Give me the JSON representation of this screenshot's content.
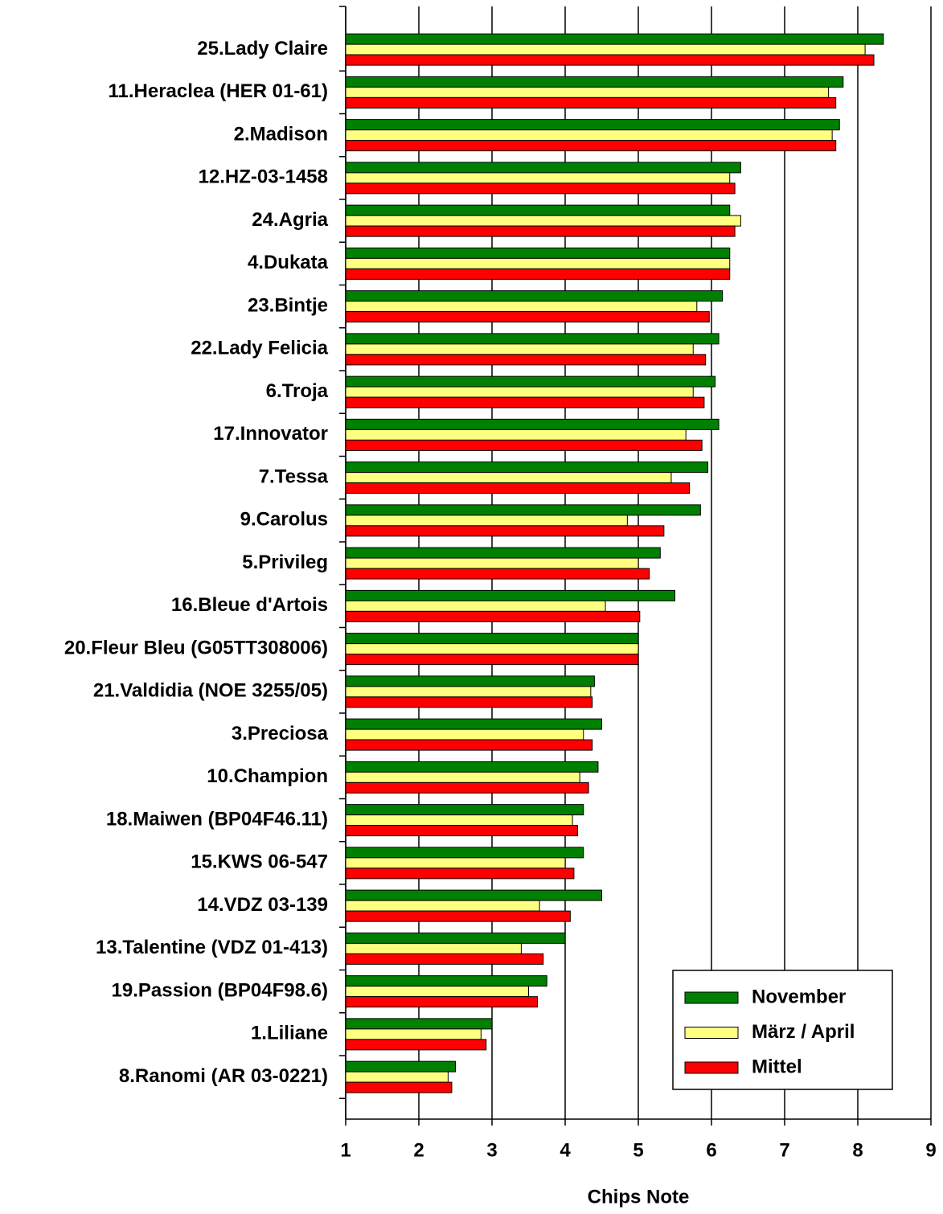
{
  "chart_data": {
    "type": "hbar",
    "xlabel": "Chips Note",
    "categories": [
      "25.Lady Claire",
      "11.Heraclea (HER 01-61)",
      "2.Madison",
      "12.HZ-03-1458",
      "24.Agria",
      "4.Dukata",
      "23.Bintje",
      "22.Lady Felicia",
      "6.Troja",
      "17.Innovator",
      "7.Tessa",
      "9.Carolus",
      "5.Privileg",
      "16.Bleue d'Artois",
      "20.Fleur Bleu (G05TT308006)",
      "21.Valdidia (NOE 3255/05)",
      "3.Preciosa",
      "10.Champion",
      "18.Maiwen (BP04F46.11)",
      "15.KWS 06-547",
      "14.VDZ 03-139",
      "13.Talentine (VDZ 01-413)",
      "19.Passion (BP04F98.6)",
      "1.Liliane",
      "8.Ranomi (AR 03-0221)"
    ],
    "series": [
      {
        "name": "November",
        "color": "#008000",
        "values": [
          8.35,
          7.8,
          7.75,
          6.4,
          6.25,
          6.25,
          6.15,
          6.1,
          6.05,
          6.1,
          5.95,
          5.85,
          5.3,
          5.5,
          5.0,
          4.4,
          4.5,
          4.45,
          4.25,
          4.25,
          4.5,
          4.0,
          3.75,
          3.0,
          2.5
        ]
      },
      {
        "name": "März / April",
        "color": "#ffff80",
        "values": [
          8.1,
          7.6,
          7.65,
          6.25,
          6.4,
          6.25,
          5.8,
          5.75,
          5.75,
          5.65,
          5.45,
          4.85,
          5.0,
          4.55,
          5.0,
          4.35,
          4.25,
          4.2,
          4.1,
          4.0,
          3.65,
          3.4,
          3.5,
          2.85,
          2.4
        ]
      },
      {
        "name": "Mittel",
        "color": "#ff0000",
        "values": [
          8.22,
          7.7,
          7.7,
          6.32,
          6.32,
          6.25,
          5.97,
          5.92,
          5.9,
          5.87,
          5.7,
          5.35,
          5.15,
          5.02,
          5.0,
          4.37,
          4.37,
          4.32,
          4.17,
          4.12,
          4.07,
          3.7,
          3.62,
          2.92,
          2.45
        ]
      }
    ],
    "xlim": [
      1,
      9
    ],
    "xticks": [
      1,
      2,
      3,
      4,
      5,
      6,
      7,
      8,
      9
    ],
    "grid": true,
    "legend": "lower-right"
  }
}
